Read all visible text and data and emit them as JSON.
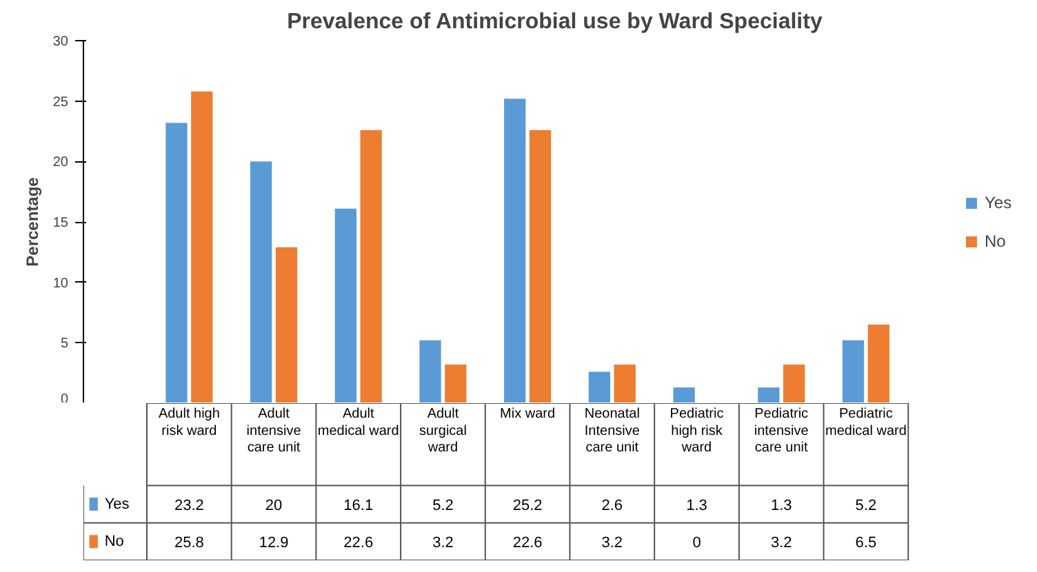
{
  "chart_data": {
    "type": "bar",
    "title": "Prevalence of Antimicrobial use by Ward Speciality",
    "ylabel": "Percentage",
    "categories": [
      "Adult high risk ward",
      "Adult intensive care unit",
      "Adult medical ward",
      "Adult surgical ward",
      "Mix ward",
      "Neonatal Intensive care unit",
      "Pediatric high risk ward",
      "Pediatric intensive care unit",
      "Pediatric medical ward"
    ],
    "series": [
      {
        "name": "Yes",
        "color": "#5b9bd5",
        "values": [
          23.2,
          20,
          16.1,
          5.2,
          25.2,
          2.6,
          1.3,
          1.3,
          5.2
        ]
      },
      {
        "name": "No",
        "color": "#ed7d31",
        "values": [
          25.8,
          12.9,
          22.6,
          3.2,
          22.6,
          3.2,
          0,
          3.2,
          6.5
        ]
      }
    ],
    "ylim": [
      0,
      30
    ],
    "yticks": [
      0,
      5,
      10,
      15,
      20,
      25,
      30
    ],
    "grid": false,
    "legend": "right",
    "data_labels": true
  }
}
